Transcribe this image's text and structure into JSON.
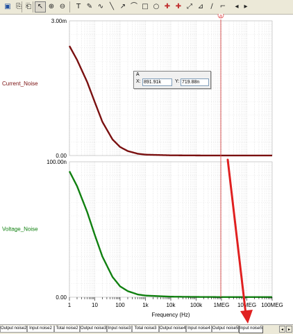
{
  "toolbar": {
    "buttons": [
      {
        "name": "save-icon",
        "glyph": "▣"
      },
      {
        "name": "copy-icon",
        "glyph": "⎘"
      },
      {
        "name": "paste-icon",
        "glyph": "⎗"
      },
      {
        "name": "pointer-icon",
        "glyph": "↖"
      },
      {
        "name": "zoom-in-icon",
        "glyph": "⊕"
      },
      {
        "name": "zoom-out-icon",
        "glyph": "⊖"
      },
      {
        "name": "text-icon",
        "glyph": "T"
      },
      {
        "name": "pen-icon",
        "glyph": "✎"
      },
      {
        "name": "curve-icon",
        "glyph": "∿"
      },
      {
        "name": "line-icon",
        "glyph": "╲"
      },
      {
        "name": "arrow-line-icon",
        "glyph": "↗"
      },
      {
        "name": "polyline-icon",
        "glyph": "⌒"
      },
      {
        "name": "rectangle-icon",
        "glyph": "□"
      },
      {
        "name": "ellipse-icon",
        "glyph": "○"
      },
      {
        "name": "cursor-a-icon",
        "glyph": "✚"
      },
      {
        "name": "cursor-b-icon",
        "glyph": "✚"
      },
      {
        "name": "tool-16-icon",
        "glyph": "⤢"
      },
      {
        "name": "tool-17-icon",
        "glyph": "⊿"
      },
      {
        "name": "tool-18-icon",
        "glyph": "∕"
      },
      {
        "name": "tool-19-icon",
        "glyph": "⌐"
      },
      {
        "name": "prev-icon",
        "glyph": "◂"
      },
      {
        "name": "next-icon",
        "glyph": "▸"
      }
    ]
  },
  "cursor": {
    "marker": "a",
    "title": "A",
    "x_label": "X:",
    "x_value": "891.91k",
    "y_label": "Y:",
    "y_value": "719.88n"
  },
  "tabs": [
    {
      "label": "Output noise2",
      "active": false
    },
    {
      "label": "Input noise2",
      "active": false
    },
    {
      "label": "Total noise2",
      "active": false
    },
    {
      "label": "Output noise3",
      "active": false
    },
    {
      "label": "Input noise3",
      "active": false
    },
    {
      "label": "Total noise3",
      "active": false
    },
    {
      "label": "Output noise4",
      "active": false
    },
    {
      "label": "Input noise4",
      "active": false
    },
    {
      "label": "Output noise5",
      "active": false
    },
    {
      "label": "Input noise5",
      "active": true
    }
  ],
  "nav": {
    "left": "◂",
    "right": "▸"
  },
  "colors": {
    "current": "#7a1010",
    "voltage": "#108010",
    "cursor": "#e05050",
    "arrow": "#e02020"
  },
  "chart_data": [
    {
      "type": "line",
      "ylabel": "Current_Noise",
      "y_tick_labels": [
        "3.00m",
        "0.00"
      ],
      "ylim": [
        0,
        0.003
      ],
      "x_scale": "log",
      "xlim": [
        1,
        100000000
      ],
      "grid": true,
      "series": [
        {
          "x": [
            1,
            2,
            5,
            10,
            20,
            50,
            100,
            200,
            500,
            1000,
            10000,
            100000,
            1000000,
            10000000,
            100000000
          ],
          "values": [
            0.00244,
            0.00213,
            0.00164,
            0.00119,
            0.00075,
            0.00036,
            0.00019,
            0.0001,
            4e-05,
            2e-05,
            5e-06,
            2e-06,
            7e-07,
            4e-07,
            3e-07
          ]
        }
      ]
    },
    {
      "type": "line",
      "ylabel": "Voltage_Noise",
      "y_tick_labels": [
        "100.00n",
        "0.00"
      ],
      "ylim": [
        0,
        1e-07
      ],
      "x_scale": "log",
      "xlim": [
        1,
        100000000
      ],
      "xlabel": "Frequency (Hz)",
      "x_tick_labels": [
        "1",
        "10",
        "100",
        "1k",
        "10k",
        "100k",
        "1MEG",
        "10MEG",
        "100MEG"
      ],
      "grid": true,
      "series": [
        {
          "x": [
            1,
            2,
            5,
            10,
            20,
            50,
            100,
            200,
            500,
            1000,
            10000,
            100000,
            1000000,
            10000000,
            100000000
          ],
          "values": [
            9.3e-08,
            8.2e-08,
            6.3e-08,
            4.6e-08,
            3e-08,
            1.5e-08,
            8e-09,
            4.5e-09,
            2e-09,
            1.2e-09,
            4e-10,
            2e-10,
            1e-10,
            8e-11,
            7e-11
          ]
        }
      ]
    }
  ]
}
